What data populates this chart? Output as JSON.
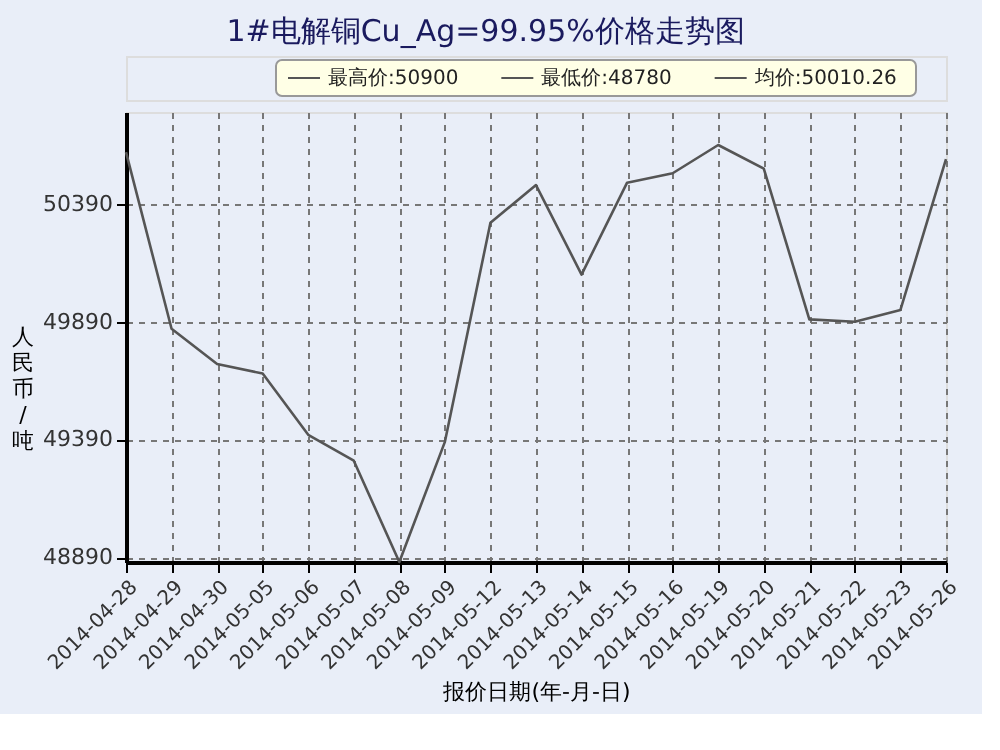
{
  "chart_data": {
    "type": "line",
    "title": "1#电解铜Cu_Ag=99.95%价格走势图",
    "xlabel": "报价日期(年-月-日)",
    "ylabel": "人民币/吨",
    "annotations": [
      "最高价:50900",
      "最低价:48780",
      "均价:50010.26"
    ],
    "categories": [
      "2014-04-28",
      "2014-04-29",
      "2014-04-30",
      "2014-05-05",
      "2014-05-06",
      "2014-05-07",
      "2014-05-08",
      "2014-05-09",
      "2014-05-12",
      "2014-05-13",
      "2014-05-14",
      "2014-05-15",
      "2014-05-16",
      "2014-05-19",
      "2014-05-20",
      "2014-05-21",
      "2014-05-22",
      "2014-05-23",
      "2014-05-26"
    ],
    "series": [
      {
        "color": "#555555",
        "values": [
          50610,
          49860,
          49710,
          49670,
          49410,
          49300,
          48870,
          49380,
          50310,
          50470,
          50090,
          50480,
          50520,
          50640,
          50540,
          49900,
          49890,
          49940,
          50580
        ]
      }
    ],
    "ylim": [
      48870,
      50780
    ],
    "yticks": [
      48890,
      49390,
      49890,
      50390
    ],
    "grid": true,
    "marker": "none",
    "line_style": "solid"
  }
}
